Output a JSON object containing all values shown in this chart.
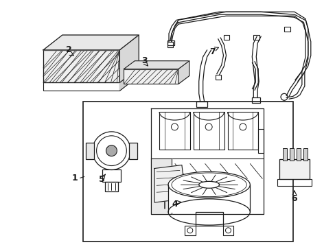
{
  "bg_color": "#ffffff",
  "line_color": "#1a1a1a",
  "fig_width": 4.89,
  "fig_height": 3.6,
  "dpi": 100,
  "font_size": 9
}
